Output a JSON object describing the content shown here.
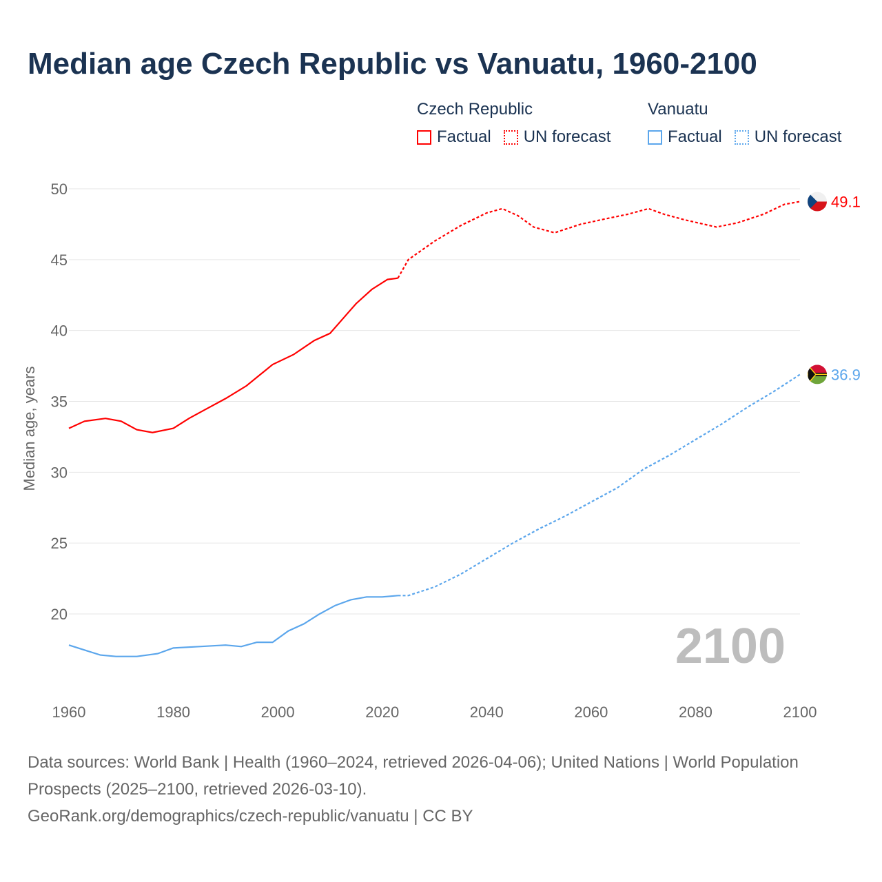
{
  "title": "Median age Czech Republic vs Vanuatu, 1960-2100",
  "legend": [
    {
      "country": "Czech Republic",
      "factual": "Factual",
      "forecast": "UN forecast",
      "color": "#ff0000"
    },
    {
      "country": "Vanuatu",
      "factual": "Factual",
      "forecast": "UN forecast",
      "color": "#5ba6ec"
    }
  ],
  "year_watermark": "2100",
  "footer": {
    "line1": "Data sources: World Bank | Health (1960–2024, retrieved 2026-04-06); United Nations | World Population Prospects (2025–2100, retrieved 2026-03-10).",
    "line2": "GeoRank.org/demographics/czech-republic/vanuatu | CC BY"
  },
  "chart_data": {
    "type": "line",
    "title": "Median age Czech Republic vs Vanuatu, 1960-2100",
    "xlabel": "",
    "ylabel": "Median age, years",
    "xlim": [
      1960,
      2100
    ],
    "ylim": [
      15,
      50
    ],
    "xticks": [
      1960,
      1980,
      2000,
      2020,
      2040,
      2060,
      2080,
      2100
    ],
    "yticks": [
      20,
      25,
      30,
      35,
      40,
      45,
      50
    ],
    "grid": true,
    "legend_position": "top-right",
    "series": [
      {
        "name": "Czech Republic",
        "color": "#ff0000",
        "end_label": "49.1",
        "factual": {
          "x": [
            1960,
            1963,
            1967,
            1970,
            1973,
            1976,
            1980,
            1983,
            1986,
            1990,
            1994,
            1999,
            2003,
            2007,
            2010,
            2015,
            2018,
            2021,
            2023
          ],
          "y": [
            33.1,
            33.6,
            33.8,
            33.6,
            33.0,
            32.8,
            33.1,
            33.8,
            34.4,
            35.2,
            36.1,
            37.6,
            38.3,
            39.3,
            39.8,
            41.9,
            42.9,
            43.6,
            43.7
          ]
        },
        "forecast": {
          "x": [
            2023,
            2025,
            2030,
            2035,
            2040,
            2043,
            2046,
            2049,
            2053,
            2058,
            2063,
            2067,
            2071,
            2074,
            2078,
            2084,
            2088,
            2093,
            2097,
            2100
          ],
          "y": [
            43.7,
            45.0,
            46.3,
            47.4,
            48.3,
            48.6,
            48.1,
            47.3,
            46.9,
            47.5,
            47.9,
            48.2,
            48.6,
            48.2,
            47.8,
            47.3,
            47.6,
            48.2,
            48.9,
            49.1
          ]
        }
      },
      {
        "name": "Vanuatu",
        "color": "#5ba6ec",
        "end_label": "36.9",
        "factual": {
          "x": [
            1960,
            1966,
            1969,
            1973,
            1977,
            1980,
            1985,
            1990,
            1993,
            1996,
            1999,
            2002,
            2005,
            2008,
            2011,
            2014,
            2017,
            2020,
            2023
          ],
          "y": [
            17.8,
            17.1,
            17.0,
            17.0,
            17.2,
            17.6,
            17.7,
            17.8,
            17.7,
            18.0,
            18.0,
            18.8,
            19.3,
            20.0,
            20.6,
            21.0,
            21.2,
            21.2,
            21.3
          ]
        },
        "forecast": {
          "x": [
            2023,
            2025,
            2030,
            2035,
            2040,
            2045,
            2050,
            2055,
            2060,
            2065,
            2070,
            2075,
            2080,
            2085,
            2090,
            2095,
            2100
          ],
          "y": [
            21.3,
            21.3,
            21.9,
            22.8,
            23.9,
            25.0,
            26.0,
            26.9,
            27.9,
            28.9,
            30.2,
            31.2,
            32.3,
            33.4,
            34.6,
            35.7,
            36.9
          ]
        }
      }
    ]
  }
}
